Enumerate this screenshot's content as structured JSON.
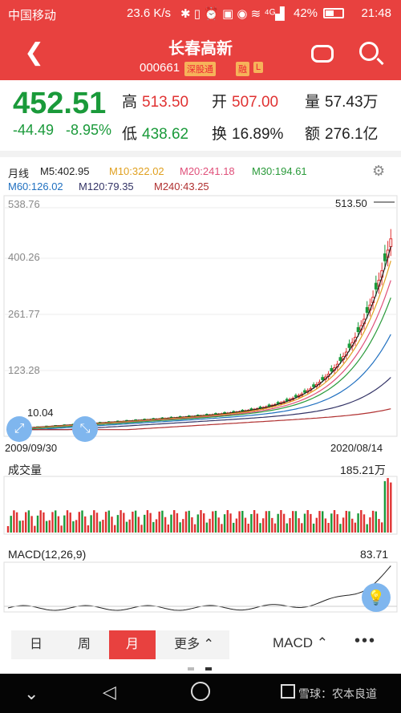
{
  "status_bar": {
    "carrier": "中国移动",
    "network_speed": "23.6 K/s",
    "battery": "42%",
    "time": "21:48"
  },
  "header": {
    "back_icon": "chevron-left-icon",
    "stock_name": "长春高新",
    "stock_code": "000661",
    "tag_hk": "深股通",
    "tag_margin": "融",
    "tag_l": "L",
    "robot_icon": "robot-icon",
    "search_icon": "search-icon"
  },
  "quote": {
    "price": "452.51",
    "change": "-44.49",
    "change_pct": "-8.95%",
    "high_label": "高",
    "high": "513.50",
    "low_label": "低",
    "low": "438.62",
    "open_label": "开",
    "open": "507.00",
    "turnover_label": "换",
    "turnover": "16.89%",
    "volume_label": "量",
    "volume": "57.43万",
    "amount_label": "额",
    "amount": "276.1亿",
    "colors": {
      "up": "#e03232",
      "down": "#1a9a3a"
    }
  },
  "chart": {
    "period_label": "月线",
    "ma": [
      {
        "label": "M5:402.95",
        "color": "#222222"
      },
      {
        "label": "M10:322.02",
        "color": "#e0a020"
      },
      {
        "label": "M20:241.18",
        "color": "#e0507a"
      },
      {
        "label": "M30:194.61",
        "color": "#2a9a3a"
      },
      {
        "label": "M60:126.02",
        "color": "#2070c0"
      },
      {
        "label": "M120:79.35",
        "color": "#333366"
      },
      {
        "label": "M240:43.25",
        "color": "#b03030"
      }
    ],
    "y_ticks": [
      "538.76",
      "400.26",
      "261.77",
      "123.28"
    ],
    "max_label": "513.50",
    "min_label": "10.04",
    "start_date": "2009/09/30",
    "end_date": "2020/08/14",
    "volume_title": "成交量",
    "volume_max": "185.21万",
    "macd_title": "MACD(12,26,9)",
    "macd_max": "83.71",
    "settings_icon": "gear-icon"
  },
  "chart_data": {
    "type": "candlestick",
    "x_range": [
      "2009/09/30",
      "2020/08/14"
    ],
    "y_range": [
      10.04,
      538.76
    ],
    "series": [
      {
        "name": "M5",
        "value": 402.95
      },
      {
        "name": "M10",
        "value": 322.02
      },
      {
        "name": "M20",
        "value": 241.18
      },
      {
        "name": "M30",
        "value": 194.61
      },
      {
        "name": "M60",
        "value": 126.02
      },
      {
        "name": "M120",
        "value": 79.35
      },
      {
        "name": "M240",
        "value": 43.25
      }
    ],
    "high": 513.5,
    "low": 10.04
  },
  "bottom_bar": {
    "tabs": [
      "日",
      "周",
      "月",
      "更多 ⌃"
    ],
    "active_tab": "月",
    "indicator": "MACD ⌃",
    "more_icon": "more-dots-icon"
  },
  "nav_bar": {
    "back_icon": "nav-back-icon",
    "home_icon": "nav-home-icon",
    "recents_icon": "nav-recents-icon",
    "watermark": "雪球：农本良道"
  }
}
